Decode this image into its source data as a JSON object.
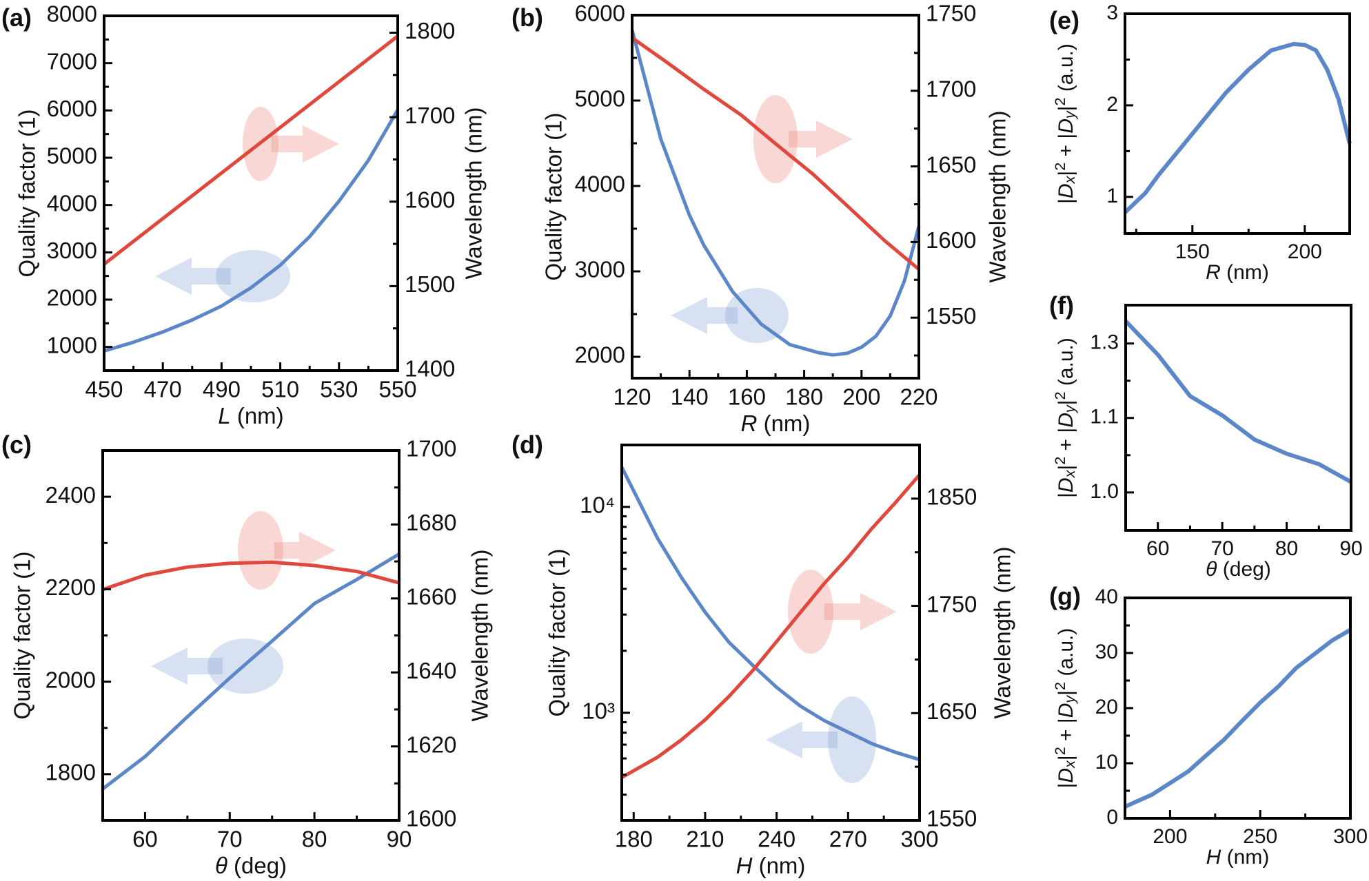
{
  "chart_data": [
    {
      "type": "line",
      "panel_label": "(a)",
      "xlabel": "L (nm)",
      "ylabel": "Quality factor (1)",
      "y2label": "Wavelength (nm)",
      "xlim": [
        450,
        550
      ],
      "ylim": [
        500,
        8000
      ],
      "y2lim": [
        1400,
        1820
      ],
      "yscale": "linear",
      "xticks": [
        450,
        470,
        490,
        510,
        530,
        550
      ],
      "yticks": [
        1000,
        2000,
        3000,
        4000,
        5000,
        6000,
        7000,
        8000
      ],
      "y2ticks": [
        1400,
        1500,
        1600,
        1700,
        1800
      ],
      "grid": false,
      "series": [
        {
          "axis": "left",
          "color": "#5b87c8",
          "x": [
            450,
            460,
            470,
            480,
            490,
            500,
            510,
            520,
            530,
            540,
            550
          ],
          "y": [
            914,
            1100,
            1317,
            1570,
            1864,
            2250,
            2728,
            3333,
            4082,
            4945,
            6011
          ]
        },
        {
          "axis": "right",
          "color": "#e0473d",
          "x": [
            450,
            500,
            550
          ],
          "y": [
            1526,
            1661,
            1796
          ]
        }
      ]
    },
    {
      "type": "line",
      "panel_label": "(b)",
      "xlabel": "R (nm)",
      "ylabel": "Quality factor (1)",
      "y2label": "Wavelength (nm)",
      "xlim": [
        120,
        220
      ],
      "ylim": [
        1750,
        6000
      ],
      "y2lim": [
        1510,
        1750
      ],
      "yscale": "linear",
      "xticks": [
        120,
        140,
        160,
        180,
        200,
        220
      ],
      "yticks": [
        2000,
        3000,
        4000,
        5000,
        6000
      ],
      "y2ticks": [
        1550,
        1600,
        1650,
        1700,
        1750
      ],
      "grid": false,
      "series": [
        {
          "axis": "left",
          "color": "#5b87c8",
          "x": [
            120,
            130,
            140,
            145,
            155,
            165,
            175,
            185,
            190,
            195,
            200,
            205,
            210,
            215,
            220
          ],
          "y": [
            5825,
            4550,
            3657,
            3307,
            2765,
            2383,
            2143,
            2048,
            2022,
            2041,
            2112,
            2240,
            2478,
            2892,
            3530
          ]
        },
        {
          "axis": "right",
          "color": "#e0473d",
          "x": [
            120,
            132,
            145,
            158,
            170,
            183,
            195,
            208,
            220
          ],
          "y": [
            1735,
            1719,
            1701,
            1684,
            1665,
            1645,
            1624,
            1601,
            1582
          ]
        }
      ]
    },
    {
      "type": "line",
      "panel_label": "(c)",
      "xlabel": "θ (deg)",
      "ylabel": "Quality factor (1)",
      "y2label": "Wavelength (nm)",
      "xlim": [
        55,
        90
      ],
      "ylim": [
        1700,
        2500
      ],
      "y2lim": [
        1600,
        1700
      ],
      "yscale": "linear",
      "xticks": [
        60,
        70,
        80,
        90
      ],
      "yticks": [
        1800,
        2000,
        2200,
        2400
      ],
      "y2ticks": [
        1600,
        1620,
        1640,
        1660,
        1680,
        1700
      ],
      "grid": false,
      "series": [
        {
          "axis": "left",
          "color": "#5b87c8",
          "x": [
            55,
            60,
            65,
            70,
            75,
            80,
            85,
            90
          ],
          "y": [
            1768,
            1838,
            1924,
            2008,
            2088,
            2169,
            2221,
            2276
          ]
        },
        {
          "axis": "right",
          "color": "#e0473d",
          "x": [
            55,
            60,
            65,
            70,
            75,
            80,
            85,
            90
          ],
          "y": [
            1662.4,
            1666.3,
            1668.5,
            1669.5,
            1669.8,
            1668.9,
            1667.3,
            1664.2
          ]
        }
      ]
    },
    {
      "type": "line",
      "panel_label": "(d)",
      "xlabel": "H (nm)",
      "ylabel": "Quality factor (1)",
      "y2label": "Wavelength (nm)",
      "xlim": [
        175,
        300
      ],
      "ylim": [
        300,
        20000
      ],
      "y2lim": [
        1550,
        1900
      ],
      "yscale": "log",
      "xticks": [
        180,
        210,
        240,
        270,
        300
      ],
      "yticks": [
        1000,
        10000
      ],
      "ytick_labels": [
        "10³",
        "10⁴"
      ],
      "y2ticks": [
        1550,
        1650,
        1750,
        1850
      ],
      "grid": false,
      "series": [
        {
          "axis": "left",
          "color": "#5b87c8",
          "x": [
            175,
            190,
            200,
            210,
            220,
            230,
            240,
            250,
            260,
            270,
            280,
            290,
            300
          ],
          "y": [
            15600,
            7050,
            4550,
            3080,
            2200,
            1700,
            1330,
            1077,
            916,
            805,
            708,
            642,
            592
          ]
        },
        {
          "axis": "right",
          "color": "#e0473d",
          "x": [
            175,
            190,
            200,
            210,
            220,
            230,
            240,
            250,
            260,
            270,
            280,
            290,
            300
          ],
          "y": [
            1590,
            1608.9,
            1625,
            1643.9,
            1665.5,
            1689.8,
            1716.8,
            1743.9,
            1770.9,
            1795.2,
            1822.2,
            1846.5,
            1872.2
          ]
        }
      ]
    },
    {
      "type": "line",
      "panel_label": "(e)",
      "xlabel": "R (nm)",
      "ylabel": "|Dx|² + |Dy|² (a.u.)",
      "xlim": [
        120,
        220
      ],
      "ylim": [
        0.6,
        3
      ],
      "yscale": "linear",
      "xticks": [
        150,
        200
      ],
      "yticks": [
        1,
        2,
        3
      ],
      "grid": false,
      "series": [
        {
          "axis": "left",
          "color": "#5b87c8",
          "x": [
            120,
            129,
            135,
            145,
            155,
            165,
            175,
            185,
            195,
            200,
            205,
            210,
            215,
            220
          ],
          "y": [
            0.83,
            1.04,
            1.24,
            1.54,
            1.84,
            2.14,
            2.39,
            2.6,
            2.67,
            2.66,
            2.6,
            2.39,
            2.07,
            1.58
          ]
        }
      ]
    },
    {
      "type": "line",
      "panel_label": "(f)",
      "xlabel": "θ (deg)",
      "ylabel": "|Dx|² + |Dy|² (a.u.)",
      "xlim": [
        55,
        90
      ],
      "ylim": [
        0.949,
        1.403
      ],
      "yscale": "as printed (equally spaced tick labels)",
      "xticks": [
        60,
        70,
        80,
        90
      ],
      "yticks": [
        1.0,
        1.1,
        1.3
      ],
      "ytick_labels": [
        "1.0",
        "1.1",
        "1.3"
      ],
      "grid": false,
      "series": [
        {
          "axis": "left",
          "color": "#5b87c8",
          "x": [
            55,
            60,
            65,
            70,
            75,
            80,
            85,
            90
          ],
          "y": [
            1.36,
            1.27,
            1.159,
            1.107,
            1.071,
            1.052,
            1.038,
            1.014
          ]
        }
      ]
    },
    {
      "type": "line",
      "panel_label": "(g)",
      "xlabel": "H (nm)",
      "ylabel": "|Dx|² + |Dy|² (a.u.)",
      "xlim": [
        175,
        300
      ],
      "ylim": [
        0,
        40
      ],
      "yscale": "linear",
      "xticks": [
        200,
        250,
        300
      ],
      "yticks": [
        0,
        10,
        20,
        30,
        40
      ],
      "grid": false,
      "series": [
        {
          "axis": "left",
          "color": "#5b87c8",
          "x": [
            175,
            190,
            200,
            210,
            220,
            230,
            240,
            250,
            260,
            270,
            280,
            290,
            300
          ],
          "y": [
            2.1,
            4.3,
            6.4,
            8.5,
            11.4,
            14.3,
            17.7,
            21.0,
            23.9,
            27.3,
            29.8,
            32.3,
            34.2
          ]
        }
      ]
    }
  ],
  "colors": {
    "q_factor_series": "#5b87c8",
    "wavelength_series": "#e0473d",
    "axis": "#000000"
  },
  "annotations": {
    "red_arrow_meaning": "right-axis",
    "blue_arrow_meaning": "left-axis"
  }
}
